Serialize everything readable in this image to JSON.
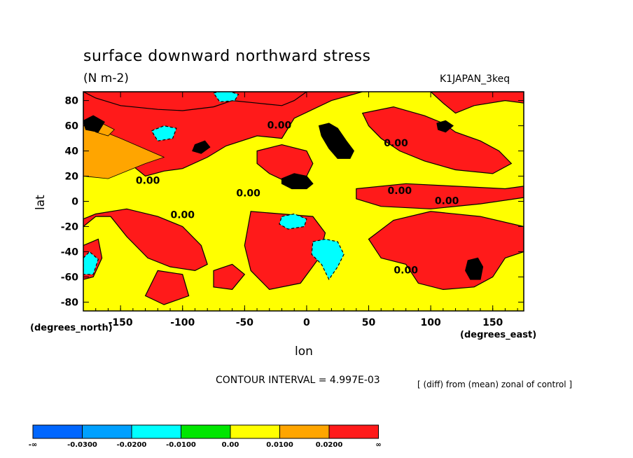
{
  "chart_data": {
    "type": "heatmap",
    "title": "surface downward northward stress",
    "units": "(N m-2)",
    "run_label": "K1JAPAN_3keq",
    "xlabel": "lon",
    "ylabel": "lat",
    "x_unit_label": "(degrees_east)",
    "y_unit_label": "(degrees_north)",
    "xlim": [
      -180,
      175
    ],
    "ylim": [
      -87,
      87
    ],
    "x_ticks": [
      -150,
      -100,
      -50,
      0,
      50,
      100,
      150
    ],
    "x_tick_labels": [
      "-150",
      "-100",
      "-50",
      "0",
      "50",
      "100",
      "150"
    ],
    "y_ticks": [
      80,
      60,
      40,
      20,
      0,
      -20,
      -40,
      -60,
      -80
    ],
    "y_tick_labels": [
      "80",
      "60",
      "40",
      "20",
      "0",
      "-20",
      "-40",
      "-60",
      "-80"
    ],
    "contour_interval": "CONTOUR INTERVAL = 4.997E-03",
    "comparison_note": "[ (diff) from (mean) zonal of control ]",
    "contour_labels": [
      {
        "text": "0.00",
        "lon": -22,
        "lat": 60
      },
      {
        "text": "0.00",
        "lon": 72,
        "lat": 46
      },
      {
        "text": "0.00",
        "lon": -128,
        "lat": 16
      },
      {
        "text": "0.00",
        "lon": -47,
        "lat": 6
      },
      {
        "text": "0.00",
        "lon": 75,
        "lat": 8
      },
      {
        "text": "0.00",
        "lon": 113,
        "lat": 0
      },
      {
        "text": "0.00",
        "lon": -100,
        "lat": -11
      },
      {
        "text": "0.00",
        "lon": 80,
        "lat": -55
      }
    ],
    "regions": [
      {
        "bin": 2,
        "pts": [
          [
            -180,
            87
          ],
          [
            -180,
            55
          ],
          [
            -165,
            48
          ],
          [
            -150,
            40
          ],
          [
            -140,
            28
          ],
          [
            -130,
            20
          ],
          [
            -115,
            24
          ],
          [
            -100,
            26
          ],
          [
            -80,
            35
          ],
          [
            -65,
            44
          ],
          [
            -40,
            52
          ],
          [
            -20,
            50
          ],
          [
            -10,
            66
          ],
          [
            20,
            80
          ],
          [
            45,
            87
          ]
        ]
      },
      {
        "bin": 2,
        "pts": [
          [
            -180,
            87
          ],
          [
            -170,
            82
          ],
          [
            -150,
            76
          ],
          [
            -120,
            73
          ],
          [
            -100,
            72
          ],
          [
            -75,
            75
          ],
          [
            -60,
            80
          ],
          [
            -40,
            78
          ],
          [
            -20,
            76
          ],
          [
            -10,
            80
          ],
          [
            0,
            87
          ]
        ]
      },
      {
        "bin": 2,
        "pts": [
          [
            100,
            87
          ],
          [
            110,
            78
          ],
          [
            120,
            70
          ],
          [
            135,
            76
          ],
          [
            160,
            80
          ],
          [
            175,
            78
          ],
          [
            175,
            87
          ]
        ]
      },
      {
        "bin": 2,
        "pts": [
          [
            -40,
            40
          ],
          [
            -20,
            45
          ],
          [
            0,
            40
          ],
          [
            5,
            30
          ],
          [
            0,
            20
          ],
          [
            -15,
            15
          ],
          [
            -30,
            22
          ],
          [
            -40,
            30
          ]
        ]
      },
      {
        "bin": 2,
        "pts": [
          [
            -180,
            -20
          ],
          [
            -170,
            -12
          ],
          [
            -158,
            -12
          ],
          [
            -145,
            -28
          ],
          [
            -128,
            -45
          ],
          [
            -110,
            -52
          ],
          [
            -90,
            -55
          ],
          [
            -80,
            -50
          ],
          [
            -85,
            -35
          ],
          [
            -100,
            -20
          ],
          [
            -120,
            -12
          ],
          [
            -145,
            -6
          ],
          [
            -170,
            -10
          ],
          [
            -180,
            -14
          ]
        ]
      },
      {
        "bin": 2,
        "pts": [
          [
            -45,
            -8
          ],
          [
            -20,
            -10
          ],
          [
            5,
            -12
          ],
          [
            15,
            -25
          ],
          [
            10,
            -45
          ],
          [
            -5,
            -65
          ],
          [
            -30,
            -70
          ],
          [
            -45,
            -55
          ],
          [
            -50,
            -35
          ]
        ]
      },
      {
        "bin": 2,
        "pts": [
          [
            50,
            -30
          ],
          [
            70,
            -15
          ],
          [
            100,
            -8
          ],
          [
            140,
            -12
          ],
          [
            175,
            -20
          ],
          [
            175,
            -40
          ],
          [
            160,
            -45
          ],
          [
            150,
            -60
          ],
          [
            135,
            -68
          ],
          [
            110,
            -70
          ],
          [
            90,
            -65
          ],
          [
            80,
            -50
          ],
          [
            60,
            -45
          ]
        ]
      },
      {
        "bin": 2,
        "pts": [
          [
            -180,
            -35
          ],
          [
            -168,
            -30
          ],
          [
            -165,
            -45
          ],
          [
            -172,
            -60
          ],
          [
            -180,
            -62
          ]
        ]
      },
      {
        "bin": 2,
        "pts": [
          [
            -120,
            -55
          ],
          [
            -100,
            -58
          ],
          [
            -95,
            -75
          ],
          [
            -115,
            -82
          ],
          [
            -130,
            -75
          ]
        ]
      },
      {
        "bin": 2,
        "pts": [
          [
            40,
            10
          ],
          [
            80,
            14
          ],
          [
            120,
            12
          ],
          [
            160,
            10
          ],
          [
            175,
            12
          ],
          [
            175,
            3
          ],
          [
            140,
            -2
          ],
          [
            100,
            -6
          ],
          [
            60,
            -4
          ],
          [
            40,
            2
          ]
        ]
      },
      {
        "bin": 2,
        "pts": [
          [
            45,
            70
          ],
          [
            70,
            75
          ],
          [
            95,
            68
          ],
          [
            110,
            62
          ],
          [
            120,
            55
          ],
          [
            140,
            48
          ],
          [
            155,
            40
          ],
          [
            165,
            30
          ],
          [
            150,
            22
          ],
          [
            120,
            25
          ],
          [
            95,
            32
          ],
          [
            75,
            40
          ],
          [
            60,
            50
          ],
          [
            50,
            60
          ]
        ]
      },
      {
        "bin": 1,
        "pts": [
          [
            -180,
            20
          ],
          [
            -160,
            18
          ],
          [
            -130,
            30
          ],
          [
            -115,
            35
          ],
          [
            -150,
            50
          ],
          [
            -170,
            58
          ],
          [
            -180,
            60
          ]
        ]
      },
      {
        "bin": 1,
        "pts": [
          [
            -165,
            62
          ],
          [
            -155,
            57
          ],
          [
            -160,
            52
          ],
          [
            -170,
            55
          ]
        ]
      },
      {
        "bin": 2,
        "pts": [
          [
            -75,
            -55
          ],
          [
            -60,
            -50
          ],
          [
            -50,
            -58
          ],
          [
            -60,
            -70
          ],
          [
            -75,
            -68
          ]
        ]
      },
      {
        "bin": 3,
        "pts": [
          [
            10,
            60
          ],
          [
            18,
            62
          ],
          [
            25,
            58
          ],
          [
            32,
            48
          ],
          [
            38,
            40
          ],
          [
            35,
            34
          ],
          [
            25,
            34
          ],
          [
            18,
            42
          ],
          [
            12,
            52
          ]
        ]
      },
      {
        "bin": 3,
        "pts": [
          [
            -20,
            18
          ],
          [
            -10,
            22
          ],
          [
            0,
            20
          ],
          [
            5,
            14
          ],
          [
            0,
            10
          ],
          [
            -12,
            10
          ],
          [
            -20,
            14
          ]
        ]
      },
      {
        "bin": 3,
        "pts": [
          [
            -180,
            64
          ],
          [
            -172,
            68
          ],
          [
            -163,
            63
          ],
          [
            -168,
            55
          ],
          [
            -178,
            57
          ]
        ]
      },
      {
        "bin": 3,
        "pts": [
          [
            -90,
            45
          ],
          [
            -82,
            48
          ],
          [
            -78,
            43
          ],
          [
            -85,
            38
          ],
          [
            -92,
            40
          ]
        ]
      },
      {
        "bin": 3,
        "pts": [
          [
            105,
            62
          ],
          [
            112,
            64
          ],
          [
            118,
            60
          ],
          [
            112,
            55
          ],
          [
            106,
            57
          ]
        ]
      },
      {
        "bin": 3,
        "pts": [
          [
            130,
            -47
          ],
          [
            138,
            -45
          ],
          [
            142,
            -52
          ],
          [
            140,
            -62
          ],
          [
            132,
            -62
          ],
          [
            128,
            -55
          ]
        ]
      },
      {
        "bin": -2,
        "pts": [
          [
            -75,
            86
          ],
          [
            -65,
            88
          ],
          [
            -55,
            85
          ],
          [
            -58,
            80
          ],
          [
            -70,
            79
          ]
        ]
      },
      {
        "bin": -2,
        "pts": [
          [
            -125,
            56
          ],
          [
            -115,
            60
          ],
          [
            -105,
            58
          ],
          [
            -108,
            50
          ],
          [
            -120,
            48
          ]
        ]
      },
      {
        "bin": -2,
        "pts": [
          [
            -20,
            -12
          ],
          [
            -10,
            -10
          ],
          [
            0,
            -14
          ],
          [
            -2,
            -20
          ],
          [
            -15,
            -22
          ],
          [
            -22,
            -18
          ]
        ]
      },
      {
        "bin": -2,
        "pts": [
          [
            5,
            -32
          ],
          [
            15,
            -30
          ],
          [
            25,
            -32
          ],
          [
            30,
            -42
          ],
          [
            25,
            -52
          ],
          [
            18,
            -62
          ],
          [
            12,
            -50
          ],
          [
            4,
            -42
          ]
        ]
      },
      {
        "bin": -2,
        "pts": [
          [
            -180,
            -45
          ],
          [
            -175,
            -40
          ],
          [
            -168,
            -46
          ],
          [
            -172,
            -58
          ],
          [
            -180,
            -58
          ]
        ]
      }
    ]
  },
  "colorbar": {
    "colors": [
      "#0066ff",
      "#00a0ff",
      "#00ffff",
      "#00e600",
      "#ffff00",
      "#ffa500",
      "#ff1a1a"
    ],
    "labels": [
      "-∞",
      "-0.0300",
      "-0.0200",
      "-0.0100",
      "0.00",
      "0.0100",
      "0.0200",
      "∞"
    ]
  }
}
